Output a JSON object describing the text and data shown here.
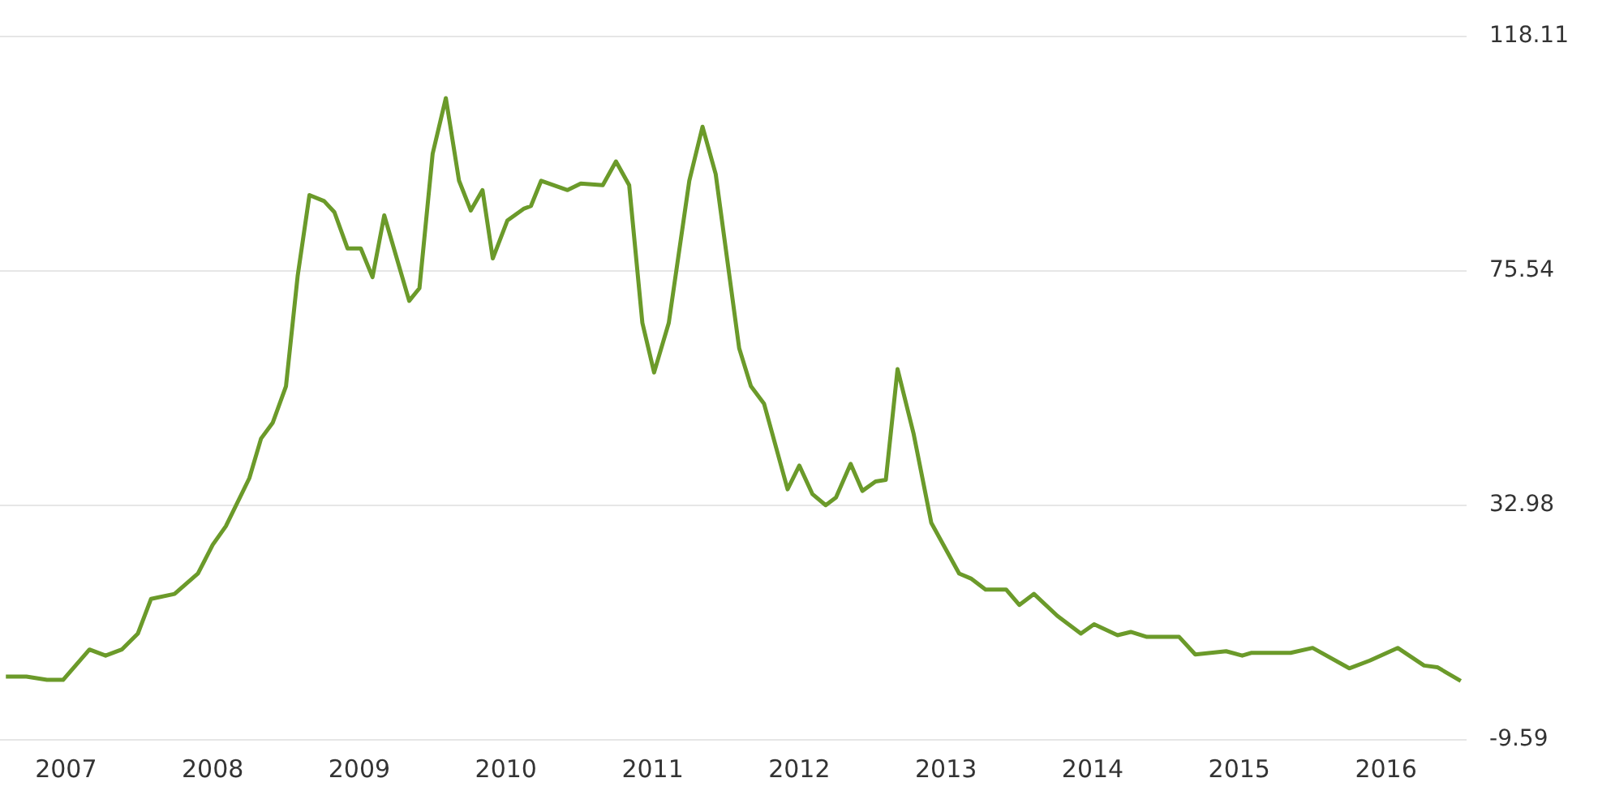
{
  "chart_data": {
    "type": "line",
    "x": [
      2006.59,
      2006.73,
      2006.87,
      2006.98,
      2007.16,
      2007.27,
      2007.38,
      2007.49,
      2007.58,
      2007.74,
      2007.9,
      2008.0,
      2008.09,
      2008.25,
      2008.33,
      2008.41,
      2008.5,
      2008.58,
      2008.66,
      2008.76,
      2008.83,
      2008.92,
      2009.01,
      2009.09,
      2009.17,
      2009.34,
      2009.41,
      2009.5,
      2009.59,
      2009.68,
      2009.76,
      2009.84,
      2009.91,
      2010.01,
      2010.12,
      2010.17,
      2010.24,
      2010.42,
      2010.51,
      2010.66,
      2010.75,
      2010.84,
      2010.93,
      2011.01,
      2011.11,
      2011.25,
      2011.34,
      2011.43,
      2011.59,
      2011.67,
      2011.76,
      2011.92,
      2012.0,
      2012.09,
      2012.18,
      2012.25,
      2012.35,
      2012.43,
      2012.52,
      2012.59,
      2012.67,
      2012.78,
      2012.9,
      2013.09,
      2013.17,
      2013.27,
      2013.41,
      2013.5,
      2013.6,
      2013.76,
      2013.92,
      2014.01,
      2014.17,
      2014.26,
      2014.37,
      2014.59,
      2014.7,
      2014.91,
      2015.02,
      2015.08,
      2015.35,
      2015.5,
      2015.75,
      2015.89,
      2016.08,
      2016.26,
      2016.35,
      2016.51
    ],
    "series": [
      {
        "color": "#6b9a2a",
        "values": [
          1.9,
          1.9,
          1.3,
          1.3,
          6.8,
          5.7,
          6.8,
          9.7,
          16.0,
          16.9,
          20.6,
          25.8,
          29.2,
          37.9,
          45.1,
          48.0,
          54.6,
          74.7,
          89.3,
          88.2,
          86.2,
          79.6,
          79.6,
          74.4,
          85.6,
          70.1,
          72.4,
          96.8,
          106.9,
          91.9,
          86.5,
          90.2,
          77.8,
          84.7,
          86.8,
          87.3,
          91.9,
          90.2,
          91.4,
          91.1,
          95.4,
          91.1,
          66.1,
          57.1,
          66.1,
          91.9,
          101.7,
          93.1,
          61.5,
          54.6,
          51.4,
          35.9,
          40.2,
          35.0,
          33.0,
          34.4,
          40.5,
          35.6,
          37.3,
          37.6,
          57.7,
          45.9,
          29.8,
          20.6,
          19.7,
          17.7,
          17.7,
          14.9,
          16.9,
          12.9,
          9.7,
          11.4,
          9.4,
          10.0,
          9.1,
          9.1,
          5.9,
          6.5,
          5.7,
          6.2,
          6.2,
          7.1,
          3.4,
          4.8,
          7.1,
          3.9,
          3.6,
          1.1
        ]
      }
    ],
    "xlim": [
      2006.55,
      2016.55
    ],
    "xticks": [
      2007,
      2008,
      2009,
      2010,
      2011,
      2012,
      2013,
      2014,
      2015,
      2016
    ],
    "ylim": [
      -9.59,
      118.11
    ],
    "yticks": [
      -9.59,
      32.98,
      75.54,
      118.11
    ],
    "grid": "y",
    "legend": false,
    "marker": "none",
    "line_style": "solid"
  }
}
